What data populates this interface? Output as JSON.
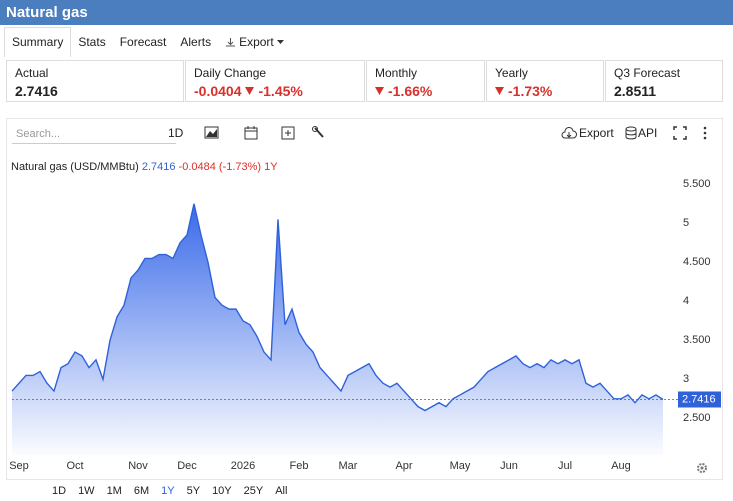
{
  "header": {
    "title": "Natural gas"
  },
  "tabs": [
    "Summary",
    "Stats",
    "Forecast",
    "Alerts",
    "Export"
  ],
  "stats": [
    {
      "label": "Actual",
      "values": [
        "2.7416"
      ]
    },
    {
      "label": "Daily Change",
      "values": [
        "-0.0404",
        "-1.45%"
      ]
    },
    {
      "label": "Monthly",
      "values": [
        "-1.66%"
      ]
    },
    {
      "label": "Yearly",
      "values": [
        "-1.73%"
      ]
    },
    {
      "label": "Q3 Forecast",
      "values": [
        "2.8511"
      ]
    }
  ],
  "toolbar": {
    "search": "Search...",
    "interval": "1D",
    "export": "Export",
    "api": "API"
  },
  "legend": {
    "change": "-0.0484 (-1.73%)",
    "period": "1Y"
  },
  "ranges": [
    "1D",
    "1W",
    "1M",
    "6M",
    "1Y",
    "5Y",
    "10Y",
    "25Y",
    "All"
  ],
  "active_range": "1Y",
  "chart_data": {
    "type": "area",
    "categories": [
      null,
      "Sep",
      null,
      null,
      null,
      null,
      null,
      null,
      null,
      "Oct",
      null,
      null,
      null,
      null,
      null,
      null,
      null,
      null,
      "Nov",
      null,
      null,
      null,
      null,
      null,
      null,
      "Dec",
      null,
      null,
      null,
      null,
      null,
      null,
      null,
      "2026",
      null,
      null,
      null,
      null,
      null,
      null,
      null,
      "Feb",
      null,
      null,
      null,
      null,
      null,
      null,
      "Mar",
      null,
      null,
      null,
      null,
      null,
      null,
      null,
      "Apr",
      null,
      null,
      null,
      null,
      null,
      null,
      null,
      "May",
      null,
      null,
      null,
      null,
      null,
      null,
      "Jun",
      null,
      null,
      null,
      null,
      null,
      null,
      null,
      "Jul",
      null,
      null,
      null,
      null,
      null,
      null,
      null,
      "Aug",
      null,
      null,
      null,
      null,
      null,
      null
    ],
    "series": [
      {
        "name": "Natural gas (USD/MMBtu)",
        "color": "#2f62d8",
        "values": [
          2.85,
          2.95,
          3.05,
          3.05,
          3.1,
          2.95,
          2.85,
          3.15,
          3.2,
          3.35,
          3.3,
          3.15,
          3.25,
          3.0,
          3.5,
          3.8,
          3.95,
          4.3,
          4.4,
          4.55,
          4.55,
          4.6,
          4.6,
          4.55,
          4.75,
          4.85,
          5.25,
          4.85,
          4.5,
          4.05,
          3.95,
          3.9,
          3.9,
          3.75,
          3.7,
          3.55,
          3.35,
          3.25,
          5.05,
          3.7,
          3.9,
          3.6,
          3.45,
          3.35,
          3.15,
          3.05,
          2.95,
          2.85,
          3.05,
          3.1,
          3.15,
          3.2,
          3.05,
          2.95,
          2.9,
          2.95,
          2.85,
          2.75,
          2.65,
          2.6,
          2.65,
          2.7,
          2.65,
          2.75,
          2.8,
          2.85,
          2.9,
          3.0,
          3.1,
          3.15,
          3.2,
          3.25,
          3.3,
          3.2,
          3.15,
          3.2,
          3.15,
          3.25,
          3.2,
          3.25,
          3.2,
          3.25,
          2.95,
          2.9,
          2.95,
          2.85,
          2.75,
          2.75,
          2.8,
          2.7,
          2.8,
          2.75,
          2.8,
          2.7416
        ]
      }
    ],
    "ylim": [
      2.03,
      5.94
    ],
    "yticks": [
      {
        "value": 5.5,
        "label": "5.500"
      },
      5,
      {
        "value": 4.5,
        "label": "4.500"
      },
      4,
      {
        "value": 3.5,
        "label": "3.500"
      },
      3,
      {
        "value": 2.5,
        "label": "2.500"
      }
    ],
    "grid": false
  }
}
